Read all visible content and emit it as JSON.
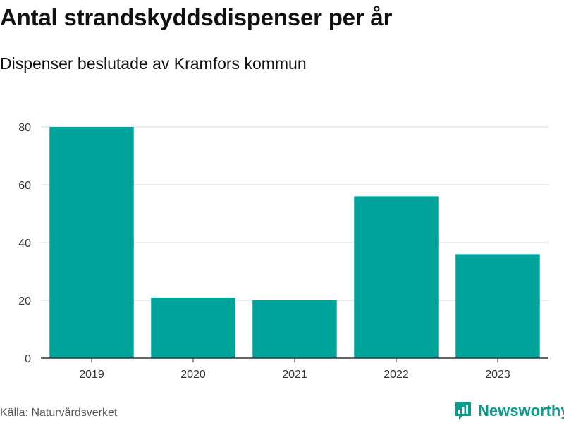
{
  "header": {
    "title": "Antal strandskyddsdispenser per år",
    "subtitle": "Dispenser beslutade av Kramfors kommun"
  },
  "footer": {
    "source": "Källa: Naturvårdsverket",
    "brand": "Newsworthy"
  },
  "colors": {
    "bar": "#00a39a",
    "grid": "#d9d9d9",
    "axis": "#333333",
    "brand": "#0a9b8c"
  },
  "chart_data": {
    "type": "bar",
    "title": "Antal strandskyddsdispenser per år",
    "subtitle": "Dispenser beslutade av Kramfors kommun",
    "xlabel": "",
    "ylabel": "",
    "categories": [
      "2019",
      "2020",
      "2021",
      "2022",
      "2023"
    ],
    "values": [
      80,
      21,
      20,
      56,
      36
    ],
    "ylim": [
      0,
      80
    ],
    "yticks": [
      0,
      20,
      40,
      60,
      80
    ],
    "grid": true
  }
}
